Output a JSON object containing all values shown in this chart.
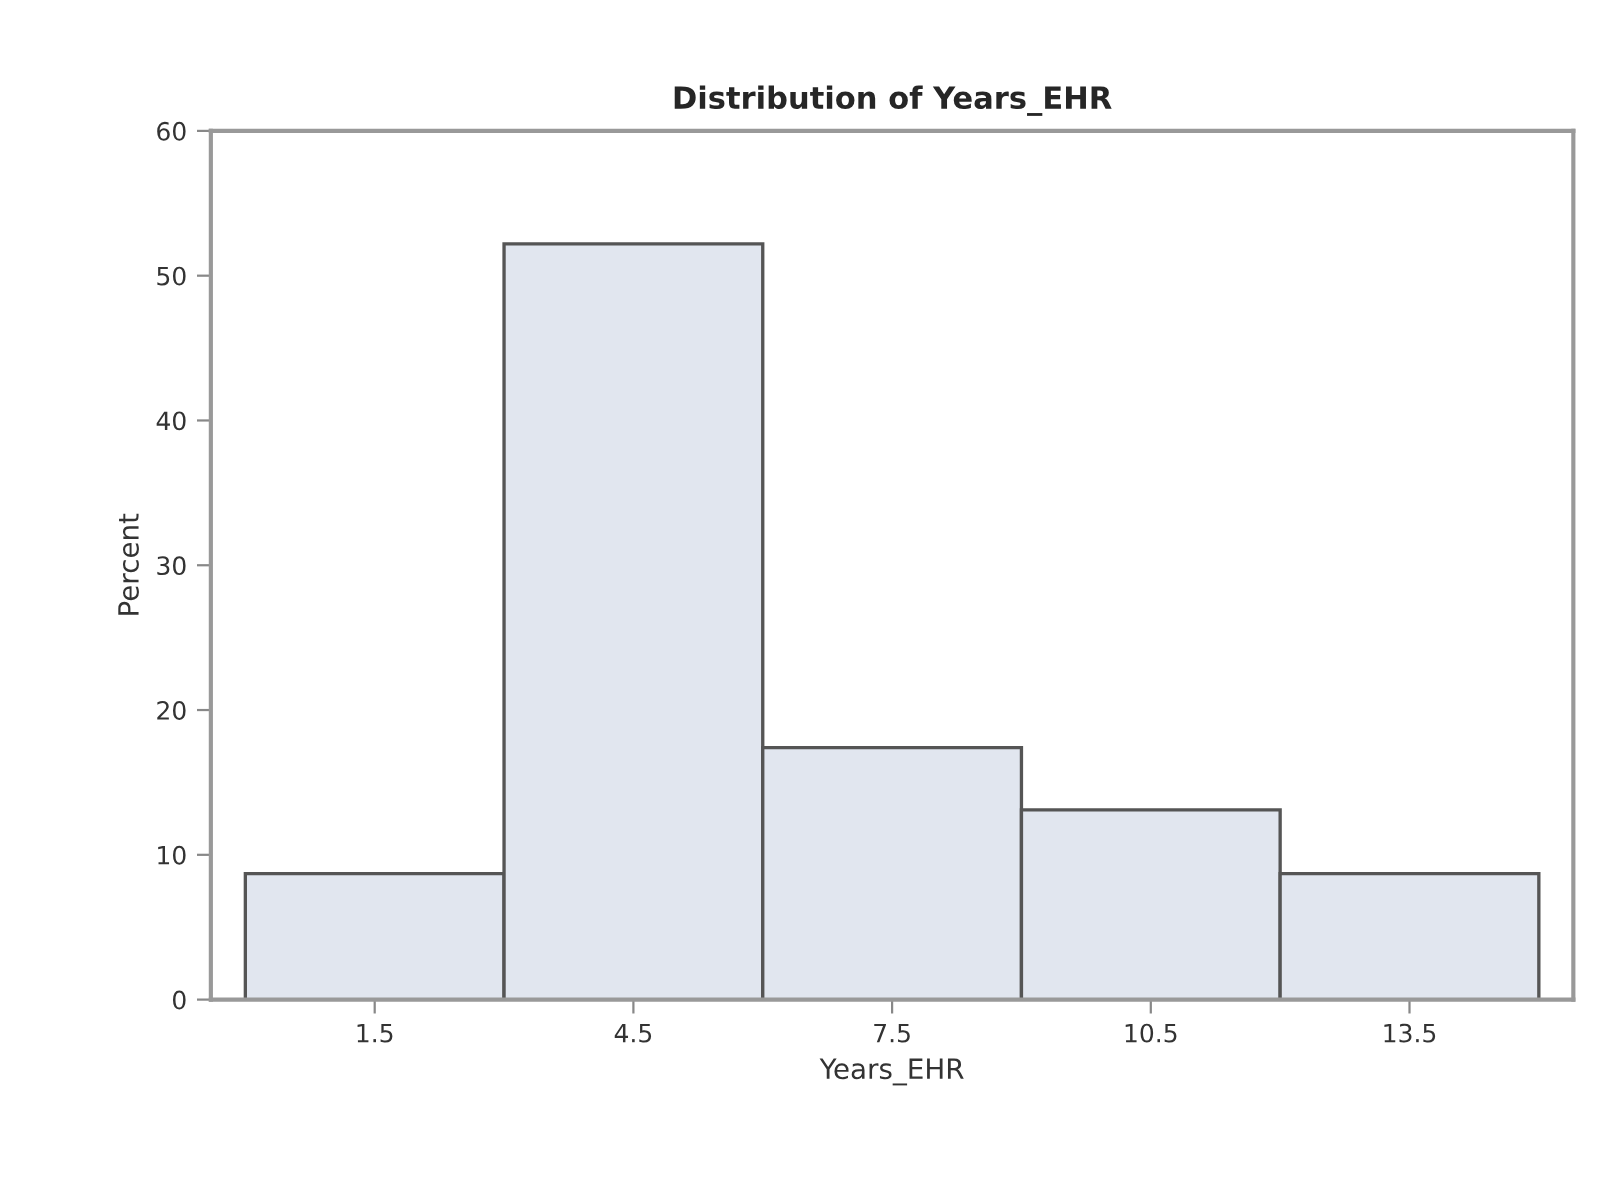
{
  "chart_data": {
    "type": "histogram",
    "title": "Distribution of Years_EHR",
    "xlabel": "Years_EHR",
    "ylabel": "Percent",
    "bins": [
      0,
      3,
      6,
      9,
      12,
      15
    ],
    "values": [
      8.7,
      52.2,
      17.4,
      13.1,
      8.7
    ],
    "color": "#e1e6ef",
    "xlim": [
      -0.4,
      15.4
    ],
    "xticks": [
      1.5,
      4.5,
      7.5,
      10.5,
      13.5
    ],
    "ylim": [
      0,
      60
    ],
    "yticks": [
      0,
      10,
      20,
      30,
      40,
      50,
      60
    ],
    "grid": false,
    "legend": false
  }
}
